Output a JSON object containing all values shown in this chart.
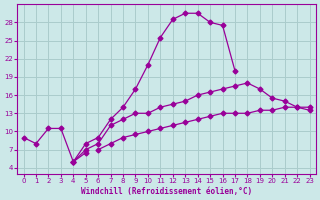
{
  "xlabel": "Windchill (Refroidissement éolien,°C)",
  "bg_color": "#cce8e8",
  "grid_color": "#aacccc",
  "line_color": "#990099",
  "ylim": [
    3,
    31
  ],
  "xlim": [
    -0.5,
    23.5
  ],
  "yticks": [
    4,
    7,
    10,
    13,
    16,
    19,
    22,
    25,
    28
  ],
  "xticks": [
    0,
    1,
    2,
    3,
    4,
    5,
    6,
    7,
    8,
    9,
    10,
    11,
    12,
    13,
    14,
    15,
    16,
    17,
    18,
    19,
    20,
    21,
    22,
    23
  ],
  "series": [
    {
      "x": [
        0,
        1,
        2,
        3,
        4,
        5,
        6,
        7,
        8,
        9,
        10,
        11,
        12,
        13,
        14,
        15,
        16,
        17,
        18,
        19,
        20,
        21,
        22,
        23
      ],
      "y": [
        9,
        8,
        10.5,
        10.5,
        5,
        8,
        9,
        12,
        14,
        17,
        21,
        25.5,
        28.5,
        29.5,
        29.5,
        28,
        27.5,
        20,
        null,
        null,
        null,
        null,
        null,
        null
      ]
    },
    {
      "x": [
        0,
        1,
        2,
        3,
        4,
        5,
        6,
        7,
        8,
        9,
        10,
        11,
        12,
        13,
        14,
        15,
        16,
        17,
        18,
        19,
        20,
        21,
        22,
        23
      ],
      "y": [
        null,
        null,
        null,
        null,
        5,
        6.5,
        null,
        null,
        null,
        null,
        null,
        null,
        null,
        null,
        null,
        null,
        null,
        null,
        null,
        null,
        null,
        null,
        null,
        null
      ]
    },
    {
      "x": [
        4,
        5,
        6,
        7,
        8,
        9,
        10,
        11,
        12,
        13,
        14,
        15,
        16,
        17,
        18,
        19,
        20,
        21,
        22,
        23
      ],
      "y": [
        5,
        7,
        8,
        11,
        12,
        13,
        13,
        14,
        14.5,
        15,
        16,
        16.5,
        17,
        17.5,
        18,
        17,
        15.5,
        15,
        14,
        13.5
      ]
    },
    {
      "x": [
        0,
        1,
        2,
        3,
        4,
        5,
        6,
        7,
        8,
        9,
        10,
        11,
        12,
        13,
        14,
        15,
        16,
        17,
        18,
        19,
        20,
        21,
        22,
        23
      ],
      "y": [
        null,
        null,
        null,
        null,
        null,
        null,
        7,
        8,
        9,
        9.5,
        10,
        10.5,
        11,
        11.5,
        12,
        12.5,
        13,
        13,
        13,
        13.5,
        13.5,
        14,
        14,
        14
      ]
    }
  ]
}
